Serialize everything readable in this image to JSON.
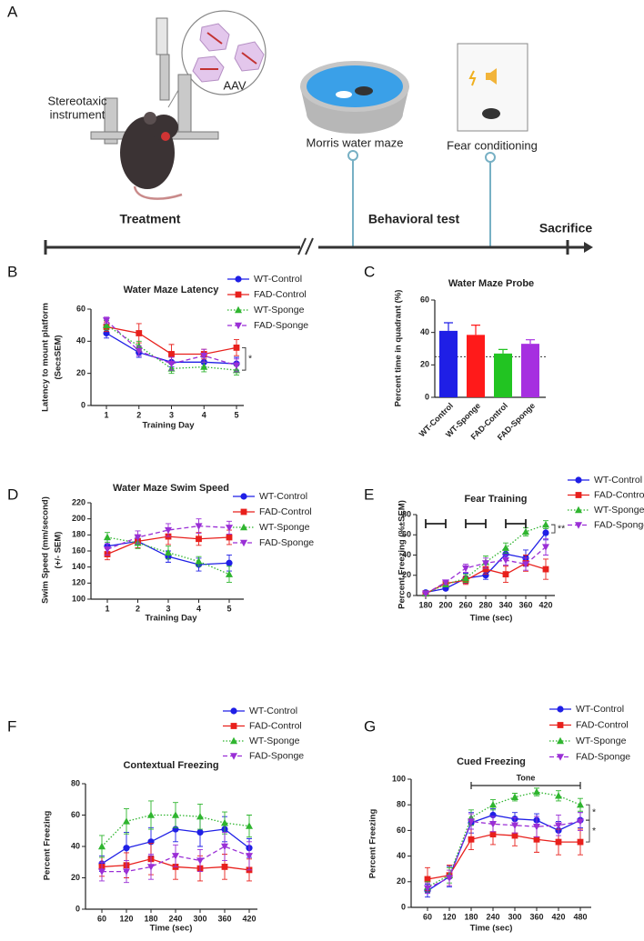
{
  "diagram": {
    "panel": "A",
    "aav": "AAV",
    "stereotaxic": [
      "Stereotaxic",
      "instrument"
    ],
    "morris": "Morris water maze",
    "fear": "Fear conditioning",
    "treatment": "Treatment",
    "behavioral": "Behavioral test",
    "sacrifice": "Sacrifice"
  },
  "chart_data": [
    {
      "type": "line",
      "panel": "B",
      "title": "Water Maze Latency",
      "xlabel": "Training Day",
      "ylabel": [
        "Latency to mount platform",
        "(Sec±SEM)"
      ],
      "categories": [
        1,
        2,
        3,
        4,
        5
      ],
      "ylim": [
        0,
        60
      ],
      "yticks": [
        0,
        20,
        40,
        60
      ],
      "annotations": [
        "*"
      ],
      "series": [
        {
          "name": "WT-Control",
          "color": "#1f1fe6",
          "marker": "circle",
          "line_style": "solid",
          "values": [
            45,
            33,
            27,
            27,
            26
          ],
          "errors": [
            3,
            3,
            3,
            3,
            4
          ]
        },
        {
          "name": "FAD-Control",
          "color": "#e8201c",
          "marker": "square",
          "line_style": "solid",
          "values": [
            49,
            45,
            32,
            32,
            36
          ],
          "errors": [
            3,
            6,
            6,
            3,
            5
          ]
        },
        {
          "name": "WT-Sponge",
          "color": "#2fb52f",
          "marker": "triangle",
          "line_style": "dotted",
          "values": [
            50,
            37,
            23,
            24,
            22
          ],
          "errors": [
            3,
            3,
            3,
            3,
            3
          ]
        },
        {
          "name": "FAD-Sponge",
          "color": "#9a2fd6",
          "marker": "triangle-down",
          "line_style": "dashed",
          "values": [
            53,
            34,
            26,
            31,
            25
          ],
          "errors": [
            2,
            3,
            4,
            4,
            4
          ]
        }
      ]
    },
    {
      "type": "bar",
      "panel": "C",
      "title": "Water Maze Probe",
      "ylabel": [
        "Percent time in quadrant (%)"
      ],
      "categories": [
        "WT-Control",
        "WT-Sponge",
        "FAD-Control",
        "FAD-Sponge"
      ],
      "values": [
        41,
        38.5,
        27,
        33
      ],
      "errors": [
        5,
        6,
        2.5,
        2.5
      ],
      "colors": [
        "#1f1fe6",
        "#ff1a1a",
        "#22c422",
        "#a62fe0"
      ],
      "reference_line": 25,
      "ylim": [
        0,
        60
      ],
      "yticks": [
        0,
        20,
        40,
        60
      ]
    },
    {
      "type": "line",
      "panel": "D",
      "title": "Water Maze Swim Speed",
      "xlabel": "Training Day",
      "ylabel": [
        "Swim Speed (mm/second)",
        "(+/- SEM)"
      ],
      "categories": [
        1,
        2,
        3,
        4,
        5
      ],
      "ylim": [
        100,
        220
      ],
      "yticks": [
        100,
        120,
        140,
        160,
        180,
        200,
        220
      ],
      "annotations": [],
      "series": [
        {
          "name": "WT-Control",
          "color": "#1f1fe6",
          "marker": "circle",
          "line_style": "solid",
          "values": [
            166,
            172,
            153,
            143,
            145
          ],
          "errors": [
            8,
            8,
            7,
            8,
            10
          ]
        },
        {
          "name": "FAD-Control",
          "color": "#e8201c",
          "marker": "square",
          "line_style": "solid",
          "values": [
            156,
            172,
            178,
            175,
            177
          ],
          "errors": [
            7,
            8,
            10,
            8,
            9
          ]
        },
        {
          "name": "WT-Sponge",
          "color": "#2fb52f",
          "marker": "triangle",
          "line_style": "dotted",
          "values": [
            177,
            170,
            158,
            147,
            131
          ],
          "errors": [
            6,
            7,
            8,
            6,
            10
          ]
        },
        {
          "name": "FAD-Sponge",
          "color": "#9a2fd6",
          "marker": "triangle-down",
          "line_style": "dashed",
          "values": [
            162,
            177,
            186,
            191,
            189
          ],
          "errors": [
            7,
            8,
            8,
            9,
            8
          ]
        }
      ]
    },
    {
      "type": "line",
      "panel": "E",
      "title": "Fear Training",
      "xlabel": "Time (sec)",
      "ylabel": [
        "Percent Freezing (%±SEM)"
      ],
      "categories": [
        180,
        200,
        260,
        280,
        340,
        360,
        420
      ],
      "ylim": [
        0,
        80
      ],
      "yticks": [
        0,
        20,
        40,
        60,
        80
      ],
      "annotations": [
        "**"
      ],
      "series": [
        {
          "name": "WT-Control",
          "color": "#1f1fe6",
          "marker": "circle",
          "line_style": "solid",
          "values": [
            3,
            7,
            17,
            20,
            41,
            37,
            62
          ],
          "errors": [
            1,
            1,
            5,
            4,
            5,
            8,
            7
          ]
        },
        {
          "name": "FAD-Control",
          "color": "#e8201c",
          "marker": "square",
          "line_style": "solid",
          "values": [
            2,
            12,
            15,
            26,
            21,
            32,
            26
          ],
          "errors": [
            1,
            2,
            4,
            5,
            8,
            8,
            10
          ]
        },
        {
          "name": "WT-Sponge",
          "color": "#2fb52f",
          "marker": "triangle",
          "line_style": "dotted",
          "values": [
            2,
            11,
            17,
            33,
            47,
            63,
            70
          ],
          "errors": [
            1,
            2,
            4,
            6,
            5,
            4,
            4
          ]
        },
        {
          "name": "FAD-Sponge",
          "color": "#9a2fd6",
          "marker": "triangle-down",
          "line_style": "dashed",
          "values": [
            2,
            13,
            27,
            32,
            35,
            31,
            48
          ],
          "errors": [
            1,
            2,
            4,
            5,
            5,
            6,
            8
          ]
        }
      ]
    },
    {
      "type": "line",
      "panel": "F",
      "title": "Contextual Freezing",
      "xlabel": "Time (sec)",
      "ylabel": [
        "Percent Freezing"
      ],
      "x": [
        60,
        120,
        180,
        240,
        300,
        360,
        420
      ],
      "xlim": [
        20,
        440
      ],
      "xticks": [
        60,
        120,
        180,
        240,
        300,
        360,
        420
      ],
      "ylim": [
        0,
        80
      ],
      "yticks": [
        0,
        20,
        40,
        60,
        80
      ],
      "annotations": [],
      "series": [
        {
          "name": "WT-Control",
          "color": "#1f1fe6",
          "marker": "circle",
          "line_style": "solid",
          "values": [
            29,
            39,
            43,
            51,
            49,
            51,
            39
          ],
          "errors": [
            5,
            10,
            9,
            8,
            9,
            8,
            6
          ]
        },
        {
          "name": "FAD-Control",
          "color": "#e8201c",
          "marker": "square",
          "line_style": "solid",
          "values": [
            27,
            28,
            32,
            27,
            26,
            27,
            25
          ],
          "errors": [
            6,
            8,
            10,
            8,
            8,
            8,
            7
          ]
        },
        {
          "name": "WT-Sponge",
          "color": "#2fb52f",
          "marker": "triangle",
          "line_style": "dotted",
          "values": [
            40,
            56,
            60,
            60,
            59,
            55,
            53
          ],
          "errors": [
            7,
            8,
            9,
            8,
            8,
            7,
            7
          ]
        },
        {
          "name": "FAD-Sponge",
          "color": "#9a2fd6",
          "marker": "triangle-down",
          "line_style": "dashed",
          "values": [
            24,
            24,
            27,
            34,
            31,
            40,
            34
          ],
          "errors": [
            6,
            7,
            8,
            7,
            7,
            9,
            9
          ]
        }
      ]
    },
    {
      "type": "line",
      "panel": "G",
      "title": "Cued Freezing",
      "xlabel": "Time (sec)",
      "ylabel": [
        "Percent Freezing"
      ],
      "tone": "Tone",
      "x": [
        60,
        120,
        180,
        240,
        300,
        360,
        420,
        480
      ],
      "xlim": [
        15,
        510
      ],
      "xticks": [
        60,
        120,
        180,
        240,
        300,
        360,
        420,
        480
      ],
      "ylim": [
        0,
        100
      ],
      "yticks": [
        0,
        20,
        40,
        60,
        80,
        100
      ],
      "annotations": [
        "*",
        "*"
      ],
      "series": [
        {
          "name": "WT-Control",
          "color": "#1f1fe6",
          "marker": "circle",
          "line_style": "solid",
          "values": [
            13,
            24,
            66,
            72,
            69,
            68,
            60,
            68
          ],
          "errors": [
            5,
            8,
            8,
            5,
            5,
            5,
            7,
            6
          ]
        },
        {
          "name": "FAD-Control",
          "color": "#e8201c",
          "marker": "square",
          "line_style": "solid",
          "values": [
            22,
            25,
            53,
            57,
            56,
            53,
            51,
            51
          ],
          "errors": [
            9,
            8,
            8,
            8,
            8,
            10,
            10,
            10
          ]
        },
        {
          "name": "WT-Sponge",
          "color": "#2fb52f",
          "marker": "triangle",
          "line_style": "dotted",
          "values": [
            16,
            25,
            70,
            80,
            86,
            90,
            87,
            80
          ],
          "errors": [
            4,
            6,
            6,
            4,
            3,
            3,
            4,
            5
          ]
        },
        {
          "name": "FAD-Sponge",
          "color": "#9a2fd6",
          "marker": "triangle-down",
          "line_style": "dashed",
          "values": [
            15,
            23,
            67,
            65,
            64,
            63,
            64,
            67
          ],
          "errors": [
            4,
            6,
            6,
            6,
            6,
            8,
            8,
            7
          ]
        }
      ]
    }
  ]
}
